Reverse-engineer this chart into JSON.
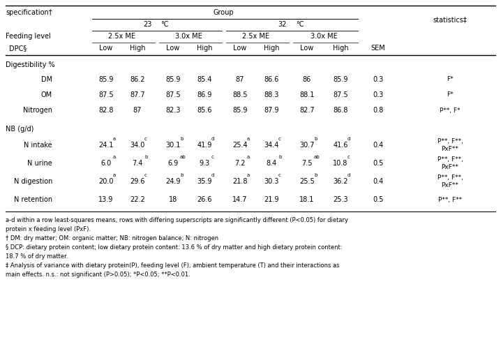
{
  "figsize": [
    7.18,
    5.0
  ],
  "dpi": 100,
  "spec_label": "specification†",
  "group_label": "Group",
  "stat_label": "statistics‡",
  "feeding_label": "Feeding level",
  "dpc_label": "DPC§",
  "temp_23": "23",
  "temp_32": "32",
  "deg_c": "°C",
  "feeding_subs": [
    "2.5x ME",
    "3.0x ME",
    "2.5x ME",
    "3.0x ME"
  ],
  "col_headers": [
    "Low",
    "High",
    "Low",
    "High",
    "Low",
    "High",
    "Low",
    "High",
    "SEM"
  ],
  "sections": [
    {
      "section_header": "Digestibility %",
      "rows": [
        {
          "label": "DM",
          "values": [
            "85.9",
            "86.2",
            "85.9",
            "85.4",
            "87",
            "86.6",
            "86",
            "85.9",
            "0.3"
          ],
          "stat": "F*",
          "stat2": "",
          "superscripts": [
            "",
            "",
            "",
            "",
            "",
            "",
            "",
            ""
          ]
        },
        {
          "label": "OM",
          "values": [
            "87.5",
            "87.7",
            "87.5",
            "86.9",
            "88.5",
            "88.3",
            "88.1",
            "87.5",
            "0.3"
          ],
          "stat": "F*",
          "stat2": "",
          "superscripts": [
            "",
            "",
            "",
            "",
            "",
            "",
            "",
            ""
          ]
        },
        {
          "label": "Nitrogen",
          "values": [
            "82.8",
            "87",
            "82.3",
            "85.6",
            "85.9",
            "87.9",
            "82.7",
            "86.8",
            "0.8"
          ],
          "stat": "P**, F*",
          "stat2": "",
          "superscripts": [
            "",
            "",
            "",
            "",
            "",
            "",
            "",
            ""
          ]
        }
      ]
    },
    {
      "section_header": "NB (g/d)",
      "rows": [
        {
          "label": "N intake",
          "values": [
            "24.1",
            "34.0",
            "30.1",
            "41.9",
            "25.4",
            "34.4",
            "30.7",
            "41.6",
            "0.4"
          ],
          "stat": "P**, F**,",
          "stat2": "PxF**",
          "superscripts": [
            "a",
            "c",
            "b",
            "d",
            "a",
            "c",
            "b",
            "d"
          ]
        },
        {
          "label": "N urine",
          "values": [
            "6.0",
            "7.4",
            "6.9",
            "9.3",
            "7.2",
            "8.4",
            "7.5",
            "10.8",
            "0.5"
          ],
          "stat": "P**, F**,",
          "stat2": "PxF**",
          "superscripts": [
            "a",
            "b",
            "ab",
            "c",
            "a",
            "b",
            "ab",
            "c"
          ]
        },
        {
          "label": "N digestion",
          "values": [
            "20.0",
            "29.6",
            "24.9",
            "35.9",
            "21.8",
            "30.3",
            "25.5",
            "36.2",
            "0.4"
          ],
          "stat": "P**, F**,",
          "stat2": "PxF**",
          "superscripts": [
            "a",
            "c",
            "b",
            "d",
            "a",
            "c",
            "b",
            "d"
          ]
        },
        {
          "label": "N retention",
          "values": [
            "13.9",
            "22.2",
            "18",
            "26.6",
            "14.7",
            "21.9",
            "18.1",
            "25.3",
            "0.5"
          ],
          "stat": "P**, F**",
          "stat2": "",
          "superscripts": [
            "",
            "",
            "",
            "",
            "",
            "",
            "",
            ""
          ]
        }
      ]
    }
  ],
  "footnotes": [
    "a-d within a row least-squares means, rows with differing superscripts are significantly different (P<0.05) for dietary",
    "protein x feeding level (PxF).",
    "† DM: dry matter; OM: organic matter; NB: nitrogen balance; N: nitrogen",
    "§ DCP: dietary protein content; low dietary protein content: 13.6 % of dry matter and high dietary protein content:",
    "18.7 % of dry matter.",
    "‡ Analysis of variance with dietary protein(P), feeding level (F), ambient temperature (T) and their interactions as",
    "main effects. n.s.: not significant (P>0.05); *P<0.05; **P<0.01."
  ],
  "font_size": 7.0,
  "small_font": 6.0,
  "sup_font": 5.0
}
